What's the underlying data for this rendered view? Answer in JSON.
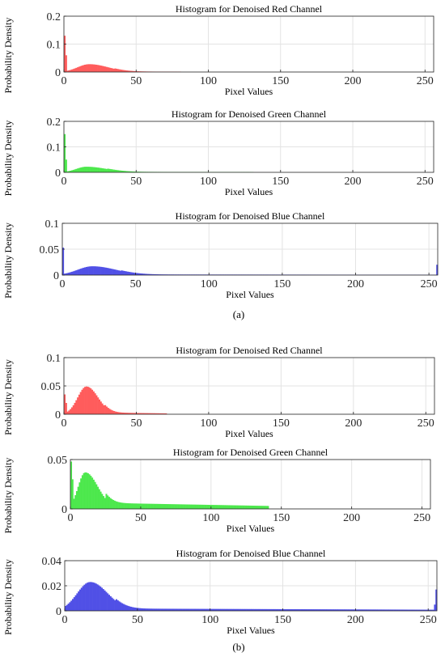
{
  "panels": [
    {
      "label": "(a)",
      "charts": [
        {
          "title": "Histogram for Denoised Red Channel",
          "xlabel": "Pixel Values",
          "ylabel": "Probability Density",
          "xlim": [
            0,
            256
          ],
          "ylim": [
            0,
            0.2
          ],
          "yticks": [
            0,
            0.1,
            0.2
          ],
          "yticklabels": [
            "0",
            "0.1",
            "0.2"
          ],
          "xticks": [
            0,
            50,
            100,
            150,
            200,
            250
          ],
          "color": "#ff5c5c"
        },
        {
          "title": "Histogram for Denoised Green Channel",
          "xlabel": "Pixel Values",
          "ylabel": "Probability Density",
          "xlim": [
            0,
            256
          ],
          "ylim": [
            0,
            0.2
          ],
          "yticks": [
            0,
            0.1,
            0.2
          ],
          "yticklabels": [
            "0",
            "0.1",
            "0.2"
          ],
          "xticks": [
            0,
            50,
            100,
            150,
            200,
            250
          ],
          "color": "#4de84d"
        },
        {
          "title": "Histogram for Denoised Blue Channel",
          "xlabel": "Pixel Values",
          "ylabel": "Probability Density",
          "xlim": [
            0,
            256
          ],
          "ylim": [
            0,
            0.1
          ],
          "yticks": [
            0,
            0.05,
            0.1
          ],
          "yticklabels": [
            "0",
            "0.05",
            "0.1"
          ],
          "xticks": [
            0,
            50,
            100,
            150,
            200,
            250
          ],
          "color": "#5050e6"
        }
      ]
    },
    {
      "label": "(b)",
      "charts": [
        {
          "title": "Histogram for Denoised Red Channel",
          "xlabel": "Pixel Values",
          "ylabel": "Probability Density",
          "xlim": [
            0,
            256
          ],
          "ylim": [
            0,
            0.1
          ],
          "yticks": [
            0,
            0.05,
            0.1
          ],
          "yticklabels": [
            "0",
            "0.05",
            "0.1"
          ],
          "xticks": [
            0,
            50,
            100,
            150,
            200,
            250
          ],
          "color": "#ff5c5c"
        },
        {
          "title": "Histogram for Denoised Green Channel",
          "xlabel": "Pixel Values",
          "ylabel": "Probability Density",
          "xlim": [
            0,
            256
          ],
          "ylim": [
            0,
            0.05
          ],
          "yticks": [
            0,
            0.05
          ],
          "yticklabels": [
            "0",
            "0.05"
          ],
          "xticks": [
            0,
            50,
            100,
            150,
            200,
            250
          ],
          "color": "#4de84d"
        },
        {
          "title": "Histogram for Denoised Blue Channel",
          "xlabel": "Pixel Values",
          "ylabel": "Probability Density",
          "xlim": [
            0,
            256
          ],
          "ylim": [
            0,
            0.04
          ],
          "yticks": [
            0,
            0.02,
            0.04
          ],
          "yticklabels": [
            "0",
            "0.02",
            "0.04"
          ],
          "xticks": [
            0,
            50,
            100,
            150,
            200,
            250
          ],
          "color": "#5050e6"
        }
      ]
    }
  ],
  "chart_data": [
    {
      "type": "bar",
      "panel": "(a)",
      "title": "Histogram for Denoised Red Channel",
      "xlabel": "Pixel Values",
      "ylabel": "Probability Density",
      "ylim": [
        0,
        0.2
      ],
      "xlim": [
        0,
        256
      ],
      "grid": true,
      "color": "#ff5c5c",
      "spikes": [
        {
          "x": 0,
          "y": 0.13
        },
        {
          "x": 1,
          "y": 0.06
        }
      ],
      "peak": {
        "x": 17,
        "y": 0.028,
        "left_width": 8,
        "right_width": 13
      },
      "tail": {
        "start": 35,
        "end": 80,
        "level": 0.002
      }
    },
    {
      "type": "bar",
      "panel": "(a)",
      "title": "Histogram for Denoised Green Channel",
      "xlabel": "Pixel Values",
      "ylabel": "Probability Density",
      "ylim": [
        0,
        0.2
      ],
      "xlim": [
        0,
        256
      ],
      "grid": true,
      "color": "#4de84d",
      "spikes": [
        {
          "x": 0,
          "y": 0.15
        },
        {
          "x": 1,
          "y": 0.05
        }
      ],
      "peak": {
        "x": 15,
        "y": 0.022,
        "left_width": 7,
        "right_width": 14
      },
      "tail": {
        "start": 30,
        "end": 130,
        "level": 0.002
      }
    },
    {
      "type": "bar",
      "panel": "(a)",
      "title": "Histogram for Denoised Blue Channel",
      "xlabel": "Pixel Values",
      "ylabel": "Probability Density",
      "ylim": [
        0,
        0.1
      ],
      "xlim": [
        0,
        256
      ],
      "grid": true,
      "color": "#5050e6",
      "spikes": [
        {
          "x": 0,
          "y": 0.053
        },
        {
          "x": 255,
          "y": 0.02
        }
      ],
      "peak": {
        "x": 20,
        "y": 0.017,
        "left_width": 10,
        "right_width": 16
      },
      "tail": {
        "start": 40,
        "end": 255,
        "level": 0.0012
      }
    },
    {
      "type": "bar",
      "panel": "(b)",
      "title": "Histogram for Denoised Red Channel",
      "xlabel": "Pixel Values",
      "ylabel": "Probability Density",
      "ylim": [
        0,
        0.1
      ],
      "xlim": [
        0,
        256
      ],
      "grid": true,
      "color": "#ff5c5c",
      "spikes": [
        {
          "x": 0,
          "y": 0.035
        },
        {
          "x": 1,
          "y": 0.02
        }
      ],
      "peak": {
        "x": 15,
        "y": 0.049,
        "left_width": 6,
        "right_width": 8
      },
      "tail": {
        "start": 28,
        "end": 70,
        "level": 0.003
      }
    },
    {
      "type": "bar",
      "panel": "(b)",
      "title": "Histogram for Denoised Green Channel",
      "xlabel": "Pixel Values",
      "ylabel": "Probability Density",
      "ylim": [
        0,
        0.05
      ],
      "xlim": [
        0,
        256
      ],
      "grid": true,
      "color": "#4de84d",
      "spikes": [
        {
          "x": 0,
          "y": 0.048
        },
        {
          "x": 1,
          "y": 0.03
        }
      ],
      "peak": {
        "x": 10,
        "y": 0.037,
        "left_width": 5,
        "right_width": 9
      },
      "tail": {
        "start": 25,
        "end": 140,
        "level": 0.006
      }
    },
    {
      "type": "bar",
      "panel": "(b)",
      "title": "Histogram for Denoised Blue Channel",
      "xlabel": "Pixel Values",
      "ylabel": "Probability Density",
      "ylim": [
        0,
        0.04
      ],
      "xlim": [
        0,
        256
      ],
      "grid": true,
      "color": "#5050e6",
      "spikes": [
        {
          "x": 255,
          "y": 0.017
        },
        {
          "x": 254,
          "y": 0.005
        }
      ],
      "peak": {
        "x": 17,
        "y": 0.023,
        "left_width": 9,
        "right_width": 12
      },
      "tail": {
        "start": 35,
        "end": 255,
        "level": 0.0018
      }
    }
  ]
}
